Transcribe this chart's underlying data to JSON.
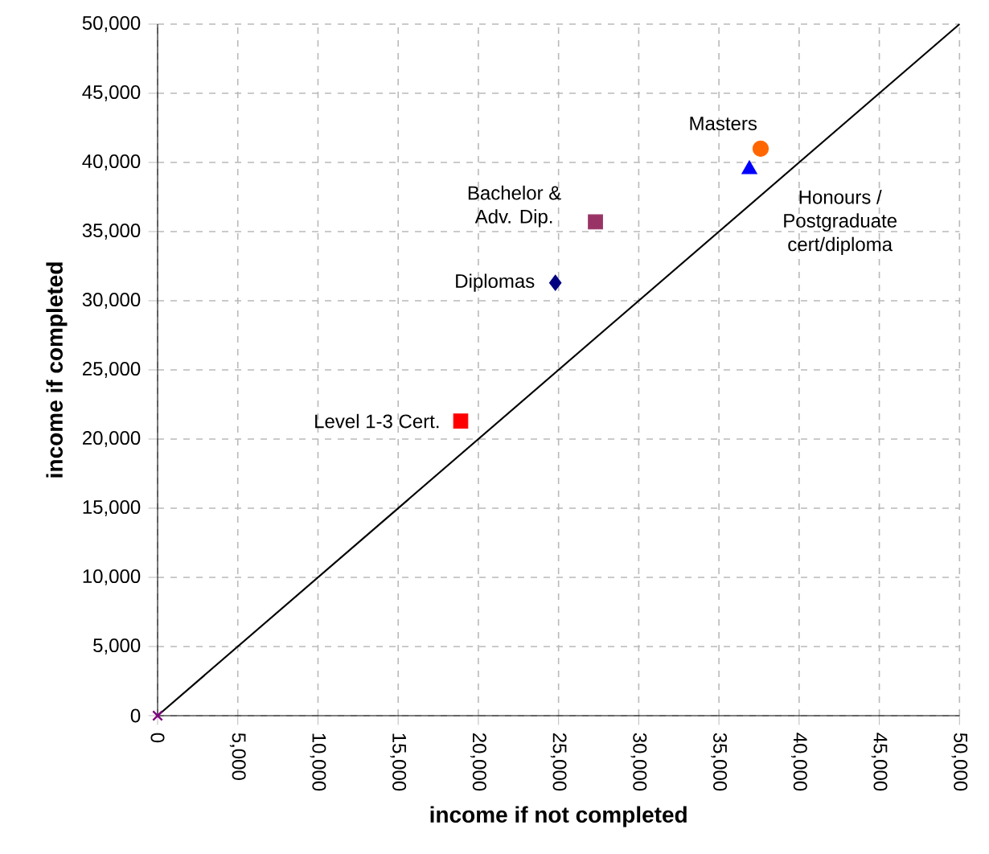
{
  "chart_data": {
    "type": "scatter",
    "xlabel": "income if not completed",
    "ylabel": "income if completed",
    "xlim": [
      0,
      50000
    ],
    "ylim": [
      0,
      50000
    ],
    "xticks": [
      0,
      {
        "value": 5000,
        "label": "5,000"
      },
      {
        "value": 10000,
        "label": "10,000"
      },
      {
        "value": 15000,
        "label": "15,000"
      },
      {
        "value": 20000,
        "label": "20,000"
      },
      {
        "value": 25000,
        "label": "25,000"
      },
      {
        "value": 30000,
        "label": "30,000"
      },
      {
        "value": 35000,
        "label": "35,000"
      },
      {
        "value": 40000,
        "label": "40,000"
      },
      {
        "value": 45000,
        "label": "45,000"
      },
      {
        "value": 50000,
        "label": "50,000"
      }
    ],
    "yticks": [
      0,
      {
        "value": 5000,
        "label": "5,000"
      },
      {
        "value": 10000,
        "label": "10,000"
      },
      {
        "value": 15000,
        "label": "15,000"
      },
      {
        "value": 20000,
        "label": "20,000"
      },
      {
        "value": 25000,
        "label": "25,000"
      },
      {
        "value": 30000,
        "label": "30,000"
      },
      {
        "value": 35000,
        "label": "35,000"
      },
      {
        "value": 40000,
        "label": "40,000"
      },
      {
        "value": 45000,
        "label": "45,000"
      },
      {
        "value": 50000,
        "label": "50,000"
      }
    ],
    "grid": true,
    "legend": false,
    "series": [
      {
        "type": "line",
        "color": "#000000",
        "x": [
          0,
          50000
        ],
        "values": [
          0,
          50000
        ],
        "marker": "none",
        "line_style": "solid"
      },
      {
        "color": "#800080",
        "x": [
          0
        ],
        "values": [
          0
        ],
        "marker": "cross"
      },
      {
        "name": "Level 1-3 Cert.",
        "color": "#ff0000",
        "x": [
          18900
        ],
        "values": [
          21300
        ],
        "marker": "square"
      },
      {
        "name": "Diplomas",
        "color": "#000080",
        "x": [
          24800
        ],
        "values": [
          31300
        ],
        "marker": "diamond"
      },
      {
        "name": "Bachelor & Adv. Dip.",
        "color": "#993366",
        "x": [
          27300
        ],
        "values": [
          35700
        ],
        "marker": "square"
      },
      {
        "name": "Honours / Postgraduate cert/diploma",
        "color": "#0000ff",
        "x": [
          36900
        ],
        "values": [
          39500
        ],
        "marker": "triangle"
      },
      {
        "name": "Masters",
        "color": "#ff6600",
        "x": [
          37600
        ],
        "values": [
          41000
        ],
        "marker": "circle"
      }
    ]
  }
}
